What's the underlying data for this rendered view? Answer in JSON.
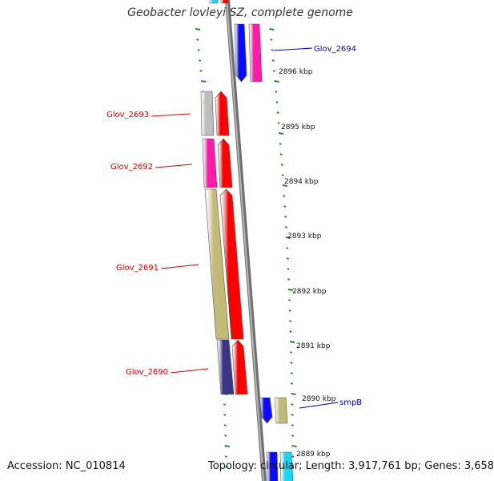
{
  "title": "Geobacter lovleyi SZ, complete genome",
  "footer": {
    "accession": "Accession: NC_010814",
    "topology": "Topology: circular; Length: 3,917,761 bp; Genes: 3,658"
  },
  "colors": {
    "backbone": "#8a8a8a",
    "tick": "#2a8a2a",
    "label_red": "#d40000",
    "label_blue": "#0000b0"
  },
  "kbp_ticks": [
    "2896 kbp",
    "2895 kbp",
    "2894 kbp",
    "2893 kbp",
    "2892 kbp",
    "2891 kbp",
    "2890 kbp",
    "2889 kbp"
  ],
  "gene_labels": [
    {
      "name": "Glov_2694",
      "color": "#0000b0"
    },
    {
      "name": "Glov_2693",
      "color": "#d40000"
    },
    {
      "name": "Glov_2692",
      "color": "#d40000"
    },
    {
      "name": "Glov_2691",
      "color": "#d40000"
    },
    {
      "name": "Glov_2690",
      "color": "#d40000"
    },
    {
      "name": "smpB",
      "color": "#0000b0"
    }
  ]
}
